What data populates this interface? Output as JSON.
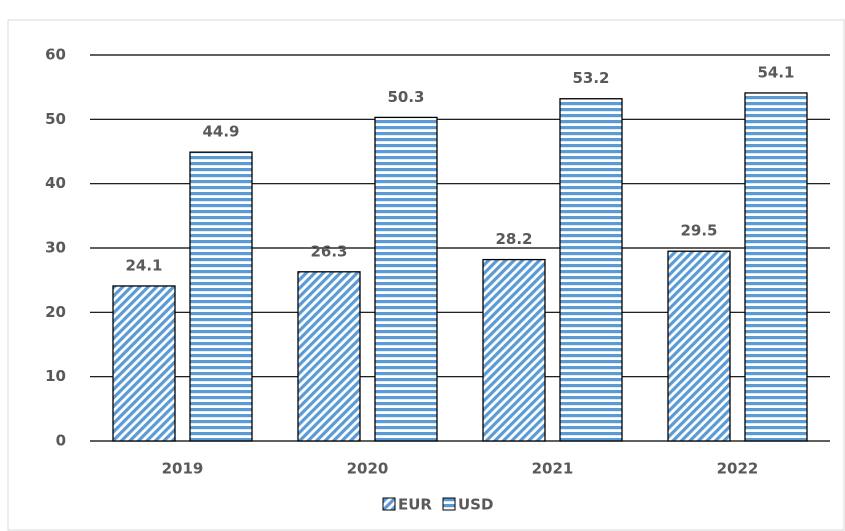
{
  "chart_data": {
    "type": "bar",
    "categories": [
      "2019",
      "2020",
      "2021",
      "2022"
    ],
    "series": [
      {
        "name": "EUR",
        "color": "#5b9bd5",
        "pattern": "diagonal",
        "values": [
          24.1,
          26.3,
          28.2,
          29.5
        ]
      },
      {
        "name": "USD",
        "color": "#5b9bd5",
        "pattern": "horizontal",
        "values": [
          44.9,
          50.3,
          53.2,
          54.1
        ]
      }
    ],
    "ylim": [
      0,
      60
    ],
    "yticks": [
      0,
      10,
      20,
      30,
      40,
      50,
      60
    ],
    "grid": true,
    "legend": "bottom"
  }
}
